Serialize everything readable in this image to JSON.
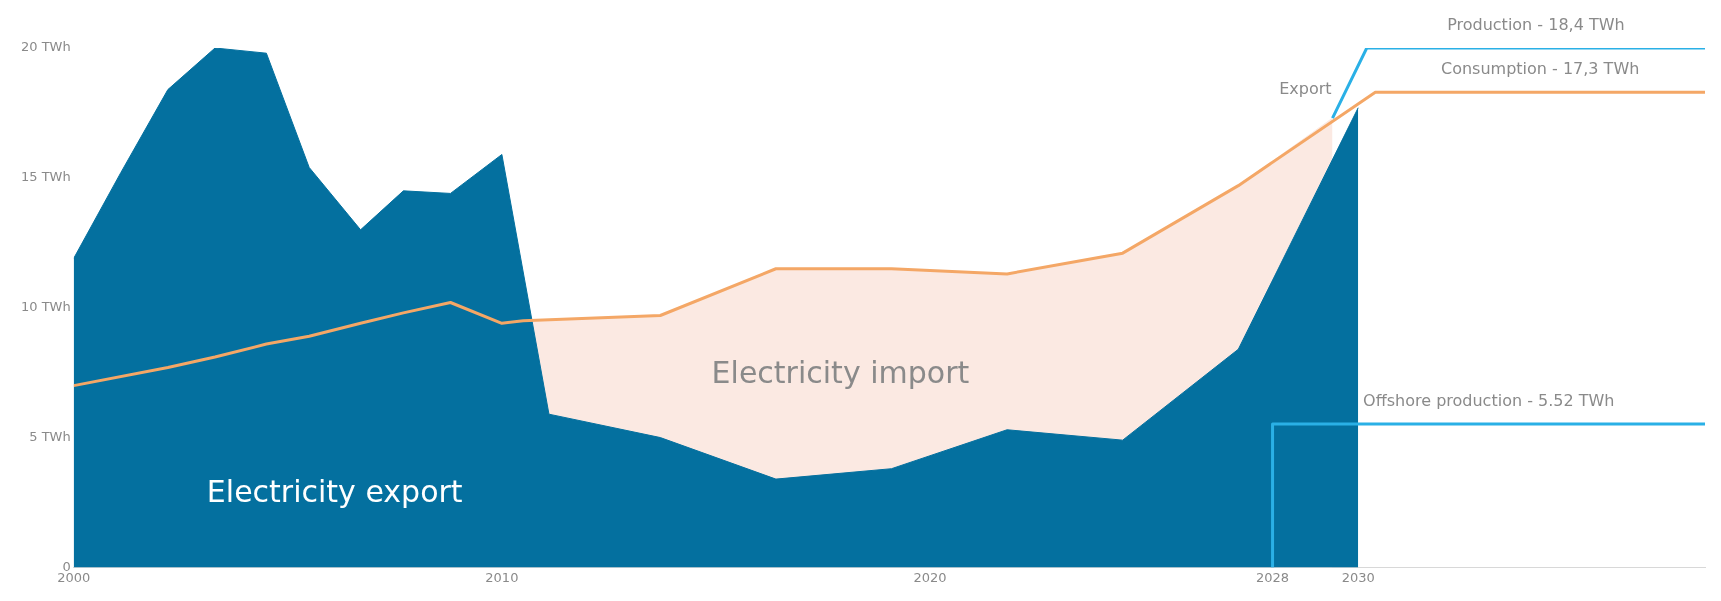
{
  "chart_data": {
    "type": "area",
    "xlim": [
      2000,
      2038.1
    ],
    "xticks": [
      2000,
      2010,
      2020,
      2028,
      2030
    ],
    "ylim": [
      0,
      20
    ],
    "yticks": [
      0,
      {
        "value": 5,
        "label": "5 TWh"
      },
      {
        "value": 10,
        "label": "10 TWh"
      },
      {
        "value": 15,
        "label": "15 TWh"
      },
      {
        "value": 20,
        "label": "20 TWh"
      }
    ],
    "grid": false,
    "legend": false,
    "series": [
      {
        "color": "#fbe9e2",
        "x": [
          2000,
          2002.2,
          2003.3,
          2004.5,
          2005.5,
          2006.7,
          2007.7,
          2008.8,
          2010,
          2010.5,
          2013.7,
          2016.4,
          2019.1,
          2021.8,
          2024.5,
          2027.2,
          2029.4
        ],
        "values": [
          7.0,
          7.7,
          8.1,
          8.6,
          8.9,
          9.4,
          9.8,
          10.2,
          9.4,
          9.5,
          9.7,
          11.5,
          11.5,
          11.3,
          12.1,
          14.7,
          17.3
        ]
      },
      {
        "color": "#04709f",
        "x": [
          2000,
          2001.1,
          2002.2,
          2003.3,
          2004.5,
          2005.5,
          2006.7,
          2007.7,
          2008.8,
          2010,
          2011.1,
          2013.7,
          2016.4,
          2019.1,
          2021.8,
          2024.5,
          2027.2,
          2030
        ],
        "values": [
          11.9,
          15.2,
          18.4,
          20.0,
          19.8,
          15.4,
          13.0,
          14.5,
          14.4,
          15.9,
          5.9,
          5.0,
          3.4,
          3.8,
          5.3,
          4.9,
          8.4,
          17.7
        ]
      },
      {
        "type": "line",
        "name": "Consumption - 17,3 TWh",
        "color": "#f4a766",
        "x": [
          2000,
          2002.2,
          2003.3,
          2004.5,
          2005.5,
          2006.7,
          2007.7,
          2008.8,
          2010,
          2010.5,
          2013.7,
          2016.4,
          2019.1,
          2021.8,
          2024.5,
          2027.2,
          2030.4,
          2038.1
        ],
        "values": [
          7.0,
          7.7,
          8.1,
          8.6,
          8.9,
          9.4,
          9.8,
          10.2,
          9.4,
          9.5,
          9.7,
          11.5,
          11.5,
          11.3,
          12.1,
          14.7,
          18.3,
          18.3
        ]
      },
      {
        "type": "line",
        "name": "Production - 18,4 TWh",
        "color": "#2ab0e6",
        "x": [
          2029.4,
          2030.2,
          2038.1
        ],
        "values": [
          17.3,
          20.0,
          20.0
        ]
      },
      {
        "type": "line",
        "name": "Offshore production - 5.52 TWh",
        "color": "#2ab0e6",
        "x": [
          2028,
          2028,
          2038.1
        ],
        "values": [
          0,
          5.52,
          5.52
        ]
      }
    ],
    "annotations": [
      "Electricity export",
      "Electricity import",
      "Export"
    ]
  }
}
